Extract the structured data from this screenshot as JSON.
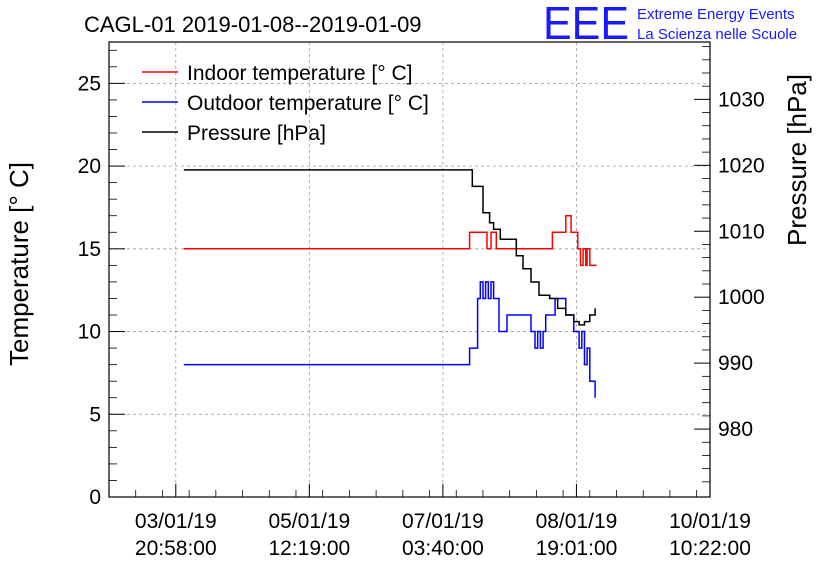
{
  "chart_data": {
    "type": "line",
    "title": "CAGL-01 2019-01-08--2019-01-09",
    "logo": {
      "letters": "EEE",
      "line1": "Extreme Energy Events",
      "line2": "La Scienza nelle Scuole",
      "color": "#1a1aff"
    },
    "x_axis": {
      "tick_labels": [
        {
          "date": "03/01/19",
          "time": "20:58:00"
        },
        {
          "date": "05/01/19",
          "time": "12:19:00"
        },
        {
          "date": "07/01/19",
          "time": "03:40:00"
        },
        {
          "date": "08/01/19",
          "time": "19:01:00"
        },
        {
          "date": "10/01/19",
          "time": "10:22:00"
        }
      ]
    },
    "y_left": {
      "label": "Temperature [° C]",
      "range": [
        0,
        27.5
      ],
      "ticks": [
        "0",
        "5",
        "10",
        "15",
        "20",
        "25"
      ]
    },
    "y_right": {
      "label": "Pressure [hPa]",
      "range": [
        969.7,
        1038.7
      ],
      "ticks": [
        "980",
        "990",
        "1000",
        "1010",
        "1020",
        "1030"
      ]
    },
    "grid": true,
    "legend_position": "top-left",
    "series": [
      {
        "name": "Indoor temperature [° C]",
        "color": "#ff0000",
        "axis": "left",
        "points": [
          [
            0.06,
            15.0
          ],
          [
            2.2,
            16.0
          ],
          [
            2.32,
            16.0
          ],
          [
            2.33,
            15.0
          ],
          [
            2.36,
            16.0
          ],
          [
            2.4,
            15.0
          ],
          [
            2.75,
            15.0
          ],
          [
            2.82,
            16.0
          ],
          [
            2.88,
            16.0
          ],
          [
            2.92,
            17.0
          ],
          [
            2.96,
            16.0
          ],
          [
            3.01,
            15.0
          ],
          [
            3.03,
            14.0
          ],
          [
            3.05,
            15.0
          ],
          [
            3.07,
            14.0
          ],
          [
            3.08,
            15.0
          ],
          [
            3.1,
            14.0
          ],
          [
            3.15,
            14.0
          ]
        ]
      },
      {
        "name": "Outdoor temperature [° C]",
        "color": "#0000ff",
        "axis": "left",
        "points": [
          [
            0.06,
            8.0
          ],
          [
            2.2,
            9.0
          ],
          [
            2.26,
            12.0
          ],
          [
            2.28,
            13.0
          ],
          [
            2.3,
            12.0
          ],
          [
            2.32,
            13.0
          ],
          [
            2.34,
            12.0
          ],
          [
            2.36,
            13.0
          ],
          [
            2.38,
            12.0
          ],
          [
            2.42,
            10.0
          ],
          [
            2.48,
            11.0
          ],
          [
            2.6,
            11.0
          ],
          [
            2.66,
            10.0
          ],
          [
            2.69,
            9.0
          ],
          [
            2.71,
            10.0
          ],
          [
            2.73,
            9.0
          ],
          [
            2.75,
            10.0
          ],
          [
            2.77,
            11.0
          ],
          [
            2.8,
            11.0
          ],
          [
            2.84,
            12.0
          ],
          [
            2.9,
            12.0
          ],
          [
            2.92,
            11.0
          ],
          [
            2.98,
            10.0
          ],
          [
            3.0,
            10.0
          ],
          [
            3.02,
            9.0
          ],
          [
            3.04,
            10.0
          ],
          [
            3.06,
            8.0
          ],
          [
            3.08,
            9.0
          ],
          [
            3.1,
            7.0
          ],
          [
            3.14,
            6.0
          ]
        ]
      },
      {
        "name": "Pressure [hPa]",
        "color": "#000000",
        "axis": "right",
        "points": [
          [
            0.06,
            1019.3
          ],
          [
            2.22,
            1016.8
          ],
          [
            2.3,
            1012.8
          ],
          [
            2.35,
            1011.3
          ],
          [
            2.38,
            1010.3
          ],
          [
            2.43,
            1008.8
          ],
          [
            2.55,
            1006.3
          ],
          [
            2.6,
            1004.3
          ],
          [
            2.66,
            1002.3
          ],
          [
            2.72,
            1000.3
          ],
          [
            2.8,
            999.8
          ],
          [
            2.86,
            998.3
          ],
          [
            2.92,
            997.3
          ],
          [
            2.98,
            996.3
          ],
          [
            3.02,
            995.8
          ],
          [
            3.06,
            996.3
          ],
          [
            3.1,
            997.3
          ],
          [
            3.14,
            998.3
          ]
        ]
      }
    ]
  }
}
